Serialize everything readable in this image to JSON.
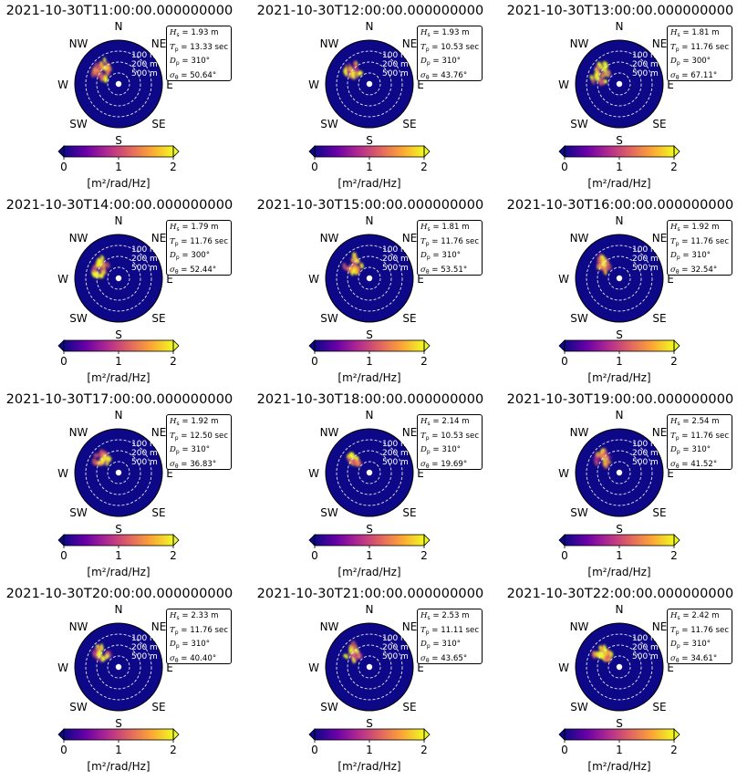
{
  "chart_data": [
    {
      "type": "heatmap",
      "title": "2021-10-30T11:00:00.000000000",
      "stats": {
        "hs": "1.93 m",
        "tp": "13.33 sec",
        "dp": "310°",
        "sigma": "50.64°"
      }
    },
    {
      "type": "heatmap",
      "title": "2021-10-30T12:00:00.000000000",
      "stats": {
        "hs": "1.93 m",
        "tp": "10.53 sec",
        "dp": "310°",
        "sigma": "43.76°"
      }
    },
    {
      "type": "heatmap",
      "title": "2021-10-30T13:00:00.000000000",
      "stats": {
        "hs": "1.81 m",
        "tp": "11.76 sec",
        "dp": "300°",
        "sigma": "67.11°"
      }
    },
    {
      "type": "heatmap",
      "title": "2021-10-30T14:00:00.000000000",
      "stats": {
        "hs": "1.79 m",
        "tp": "11.76 sec",
        "dp": "300°",
        "sigma": "52.44°"
      }
    },
    {
      "type": "heatmap",
      "title": "2021-10-30T15:00:00.000000000",
      "stats": {
        "hs": "1.81 m",
        "tp": "11.76 sec",
        "dp": "310°",
        "sigma": "53.51°"
      }
    },
    {
      "type": "heatmap",
      "title": "2021-10-30T16:00:00.000000000",
      "stats": {
        "hs": "1.92 m",
        "tp": "11.76 sec",
        "dp": "310°",
        "sigma": "32.54°"
      }
    },
    {
      "type": "heatmap",
      "title": "2021-10-30T17:00:00.000000000",
      "stats": {
        "hs": "1.92 m",
        "tp": "12.50 sec",
        "dp": "310°",
        "sigma": "36.83°"
      }
    },
    {
      "type": "heatmap",
      "title": "2021-10-30T18:00:00.000000000",
      "stats": {
        "hs": "2.14 m",
        "tp": "10.53 sec",
        "dp": "310°",
        "sigma": "19.69°"
      }
    },
    {
      "type": "heatmap",
      "title": "2021-10-30T19:00:00.000000000",
      "stats": {
        "hs": "2.54 m",
        "tp": "11.76 sec",
        "dp": "310°",
        "sigma": "41.52°"
      }
    },
    {
      "type": "heatmap",
      "title": "2021-10-30T20:00:00.000000000",
      "stats": {
        "hs": "2.33 m",
        "tp": "11.76 sec",
        "dp": "310°",
        "sigma": "40.40°"
      }
    },
    {
      "type": "heatmap",
      "title": "2021-10-30T21:00:00.000000000",
      "stats": {
        "hs": "2.53 m",
        "tp": "11.11 sec",
        "dp": "310°",
        "sigma": "43.65°"
      }
    },
    {
      "type": "heatmap",
      "title": "2021-10-30T22:00:00.000000000",
      "stats": {
        "hs": "2.42 m",
        "tp": "11.76 sec",
        "dp": "310°",
        "sigma": "34.61°"
      }
    }
  ],
  "compass": {
    "N": "N",
    "NE": "NE",
    "E": "E",
    "SE": "SE",
    "S": "S",
    "SW": "SW",
    "W": "W",
    "NW": "NW"
  },
  "ring_labels": [
    "100 m",
    "200 m",
    "500 m"
  ],
  "colorbar": {
    "ticks": [
      "0",
      "1",
      "2"
    ],
    "label": "[m²/rad/Hz]",
    "range": [
      0,
      2
    ],
    "colormap": "plasma"
  },
  "colors": {
    "background": "#0d0887",
    "ring": "#e8e8f0",
    "peak": "#f0f921"
  }
}
